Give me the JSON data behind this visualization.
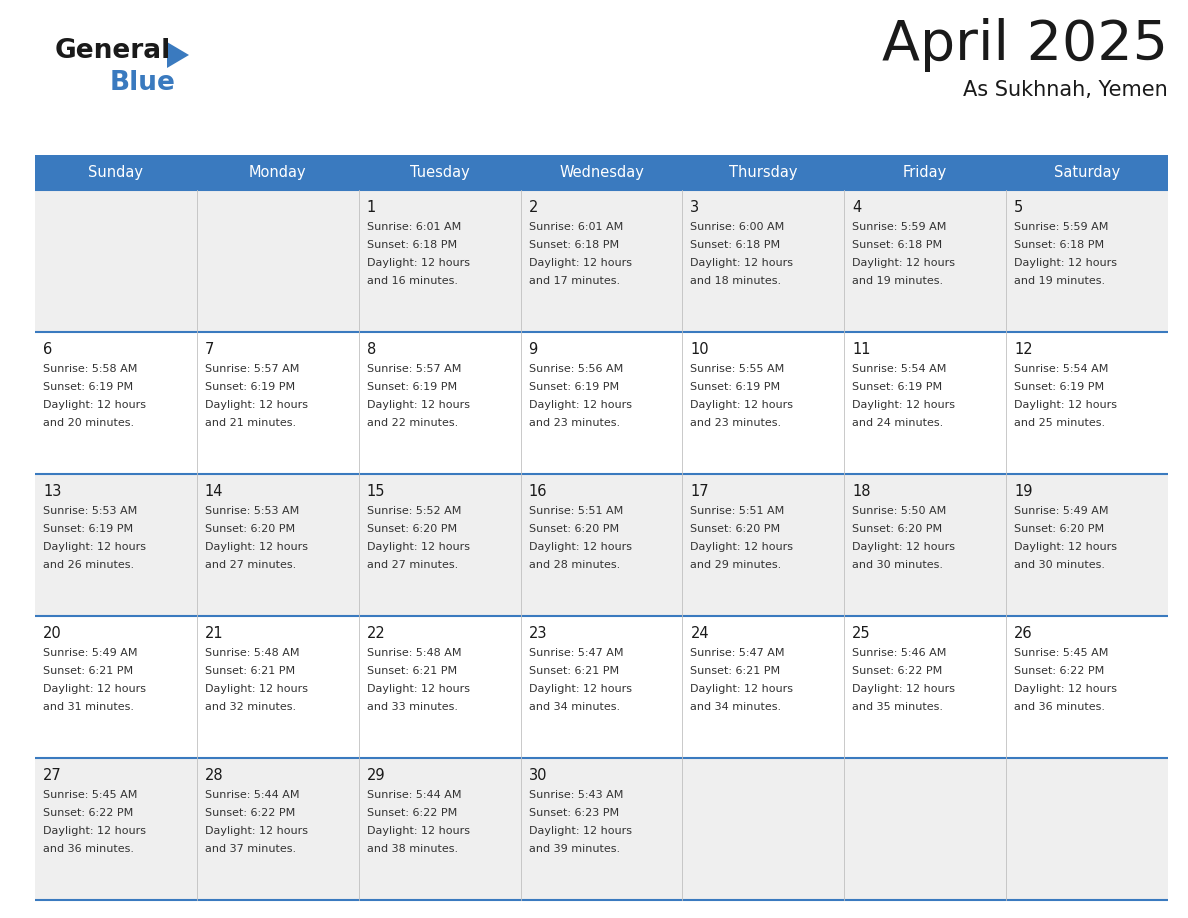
{
  "title": "April 2025",
  "subtitle": "As Sukhnah, Yemen",
  "header_bg_color": "#3a7abf",
  "header_text_color": "#ffffff",
  "day_names": [
    "Sunday",
    "Monday",
    "Tuesday",
    "Wednesday",
    "Thursday",
    "Friday",
    "Saturday"
  ],
  "row_colors": [
    "#efefef",
    "#ffffff"
  ],
  "divider_color": "#3a7abf",
  "text_color": "#1a1a1a",
  "cell_text_color": "#333333",
  "days": [
    {
      "day": 1,
      "col": 2,
      "row": 0,
      "sunrise": "6:01 AM",
      "sunset": "6:18 PM",
      "daylight_hours": 12,
      "daylight_minutes": 16
    },
    {
      "day": 2,
      "col": 3,
      "row": 0,
      "sunrise": "6:01 AM",
      "sunset": "6:18 PM",
      "daylight_hours": 12,
      "daylight_minutes": 17
    },
    {
      "day": 3,
      "col": 4,
      "row": 0,
      "sunrise": "6:00 AM",
      "sunset": "6:18 PM",
      "daylight_hours": 12,
      "daylight_minutes": 18
    },
    {
      "day": 4,
      "col": 5,
      "row": 0,
      "sunrise": "5:59 AM",
      "sunset": "6:18 PM",
      "daylight_hours": 12,
      "daylight_minutes": 19
    },
    {
      "day": 5,
      "col": 6,
      "row": 0,
      "sunrise": "5:59 AM",
      "sunset": "6:18 PM",
      "daylight_hours": 12,
      "daylight_minutes": 19
    },
    {
      "day": 6,
      "col": 0,
      "row": 1,
      "sunrise": "5:58 AM",
      "sunset": "6:19 PM",
      "daylight_hours": 12,
      "daylight_minutes": 20
    },
    {
      "day": 7,
      "col": 1,
      "row": 1,
      "sunrise": "5:57 AM",
      "sunset": "6:19 PM",
      "daylight_hours": 12,
      "daylight_minutes": 21
    },
    {
      "day": 8,
      "col": 2,
      "row": 1,
      "sunrise": "5:57 AM",
      "sunset": "6:19 PM",
      "daylight_hours": 12,
      "daylight_minutes": 22
    },
    {
      "day": 9,
      "col": 3,
      "row": 1,
      "sunrise": "5:56 AM",
      "sunset": "6:19 PM",
      "daylight_hours": 12,
      "daylight_minutes": 23
    },
    {
      "day": 10,
      "col": 4,
      "row": 1,
      "sunrise": "5:55 AM",
      "sunset": "6:19 PM",
      "daylight_hours": 12,
      "daylight_minutes": 23
    },
    {
      "day": 11,
      "col": 5,
      "row": 1,
      "sunrise": "5:54 AM",
      "sunset": "6:19 PM",
      "daylight_hours": 12,
      "daylight_minutes": 24
    },
    {
      "day": 12,
      "col": 6,
      "row": 1,
      "sunrise": "5:54 AM",
      "sunset": "6:19 PM",
      "daylight_hours": 12,
      "daylight_minutes": 25
    },
    {
      "day": 13,
      "col": 0,
      "row": 2,
      "sunrise": "5:53 AM",
      "sunset": "6:19 PM",
      "daylight_hours": 12,
      "daylight_minutes": 26
    },
    {
      "day": 14,
      "col": 1,
      "row": 2,
      "sunrise": "5:53 AM",
      "sunset": "6:20 PM",
      "daylight_hours": 12,
      "daylight_minutes": 27
    },
    {
      "day": 15,
      "col": 2,
      "row": 2,
      "sunrise": "5:52 AM",
      "sunset": "6:20 PM",
      "daylight_hours": 12,
      "daylight_minutes": 27
    },
    {
      "day": 16,
      "col": 3,
      "row": 2,
      "sunrise": "5:51 AM",
      "sunset": "6:20 PM",
      "daylight_hours": 12,
      "daylight_minutes": 28
    },
    {
      "day": 17,
      "col": 4,
      "row": 2,
      "sunrise": "5:51 AM",
      "sunset": "6:20 PM",
      "daylight_hours": 12,
      "daylight_minutes": 29
    },
    {
      "day": 18,
      "col": 5,
      "row": 2,
      "sunrise": "5:50 AM",
      "sunset": "6:20 PM",
      "daylight_hours": 12,
      "daylight_minutes": 30
    },
    {
      "day": 19,
      "col": 6,
      "row": 2,
      "sunrise": "5:49 AM",
      "sunset": "6:20 PM",
      "daylight_hours": 12,
      "daylight_minutes": 30
    },
    {
      "day": 20,
      "col": 0,
      "row": 3,
      "sunrise": "5:49 AM",
      "sunset": "6:21 PM",
      "daylight_hours": 12,
      "daylight_minutes": 31
    },
    {
      "day": 21,
      "col": 1,
      "row": 3,
      "sunrise": "5:48 AM",
      "sunset": "6:21 PM",
      "daylight_hours": 12,
      "daylight_minutes": 32
    },
    {
      "day": 22,
      "col": 2,
      "row": 3,
      "sunrise": "5:48 AM",
      "sunset": "6:21 PM",
      "daylight_hours": 12,
      "daylight_minutes": 33
    },
    {
      "day": 23,
      "col": 3,
      "row": 3,
      "sunrise": "5:47 AM",
      "sunset": "6:21 PM",
      "daylight_hours": 12,
      "daylight_minutes": 34
    },
    {
      "day": 24,
      "col": 4,
      "row": 3,
      "sunrise": "5:47 AM",
      "sunset": "6:21 PM",
      "daylight_hours": 12,
      "daylight_minutes": 34
    },
    {
      "day": 25,
      "col": 5,
      "row": 3,
      "sunrise": "5:46 AM",
      "sunset": "6:22 PM",
      "daylight_hours": 12,
      "daylight_minutes": 35
    },
    {
      "day": 26,
      "col": 6,
      "row": 3,
      "sunrise": "5:45 AM",
      "sunset": "6:22 PM",
      "daylight_hours": 12,
      "daylight_minutes": 36
    },
    {
      "day": 27,
      "col": 0,
      "row": 4,
      "sunrise": "5:45 AM",
      "sunset": "6:22 PM",
      "daylight_hours": 12,
      "daylight_minutes": 36
    },
    {
      "day": 28,
      "col": 1,
      "row": 4,
      "sunrise": "5:44 AM",
      "sunset": "6:22 PM",
      "daylight_hours": 12,
      "daylight_minutes": 37
    },
    {
      "day": 29,
      "col": 2,
      "row": 4,
      "sunrise": "5:44 AM",
      "sunset": "6:22 PM",
      "daylight_hours": 12,
      "daylight_minutes": 38
    },
    {
      "day": 30,
      "col": 3,
      "row": 4,
      "sunrise": "5:43 AM",
      "sunset": "6:23 PM",
      "daylight_hours": 12,
      "daylight_minutes": 39
    }
  ]
}
